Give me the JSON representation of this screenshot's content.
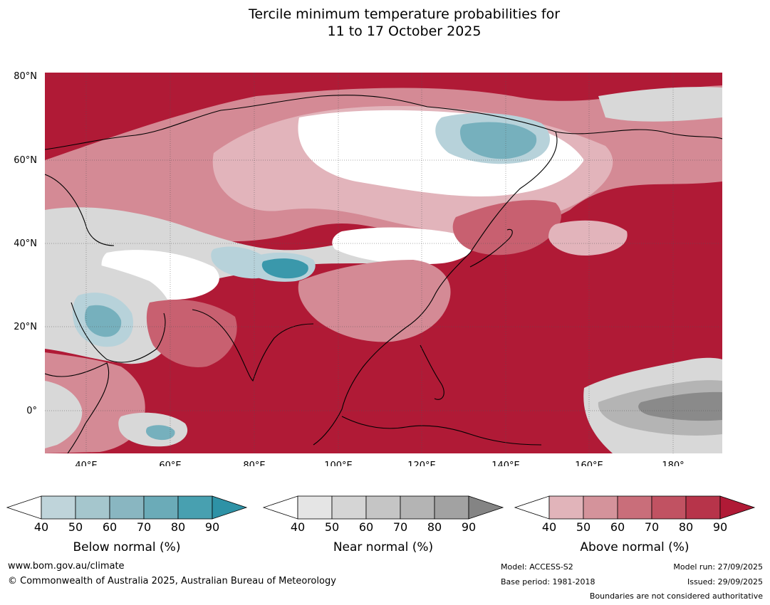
{
  "title": {
    "line1": "Tercile minimum temperature probabilities for",
    "line2": "11 to 17 October 2025"
  },
  "map": {
    "lat_labels": [
      "80°N",
      "60°N",
      "40°N",
      "20°N",
      "0°"
    ],
    "lon_labels": [
      "40°E",
      "60°E",
      "80°E",
      "100°E",
      "120°E",
      "140°E",
      "160°E",
      "180°"
    ],
    "colors": {
      "above_90": "#b01a36",
      "above_80": "#c03a4f",
      "above_70": "#c86070",
      "above_60": "#d48a95",
      "above_50": "#e2b4bb",
      "near_50": "#d8d8d8",
      "near_70": "#b4b4b4",
      "near_90": "#8a8a8a",
      "below_50": "#b7d2da",
      "below_70": "#76b0bd",
      "below_90": "#3a98ab",
      "none": "#ffffff"
    }
  },
  "legends": [
    {
      "title": "Below normal (%)",
      "ticks": [
        "40",
        "50",
        "60",
        "70",
        "80",
        "90"
      ],
      "colors": [
        "#bfd4da",
        "#a5c6cd",
        "#89b6c1",
        "#6babb8",
        "#48a0b0",
        "#2e92a6"
      ]
    },
    {
      "title": "Near normal (%)",
      "ticks": [
        "40",
        "50",
        "60",
        "70",
        "80",
        "90"
      ],
      "colors": [
        "#e5e5e5",
        "#d5d5d5",
        "#c5c5c5",
        "#b4b4b4",
        "#a2a2a2",
        "#848484"
      ]
    },
    {
      "title": "Above normal (%)",
      "ticks": [
        "40",
        "50",
        "60",
        "70",
        "80",
        "90"
      ],
      "colors": [
        "#e1b4ba",
        "#d4939b",
        "#c96e7a",
        "#c15262",
        "#b7344a",
        "#b01a36"
      ]
    }
  ],
  "footer": {
    "website": "www.bom.gov.au/climate",
    "copyright": "© Commonwealth of Australia 2025, Australian Bureau of Meteorology",
    "model": "Model: ACCESS-S2",
    "base_period": "Base period: 1981-2018",
    "model_run": "Model run: 27/09/2025",
    "issued": "Issued: 29/09/2025",
    "disclaimer": "Boundaries are not considered authoritative"
  }
}
